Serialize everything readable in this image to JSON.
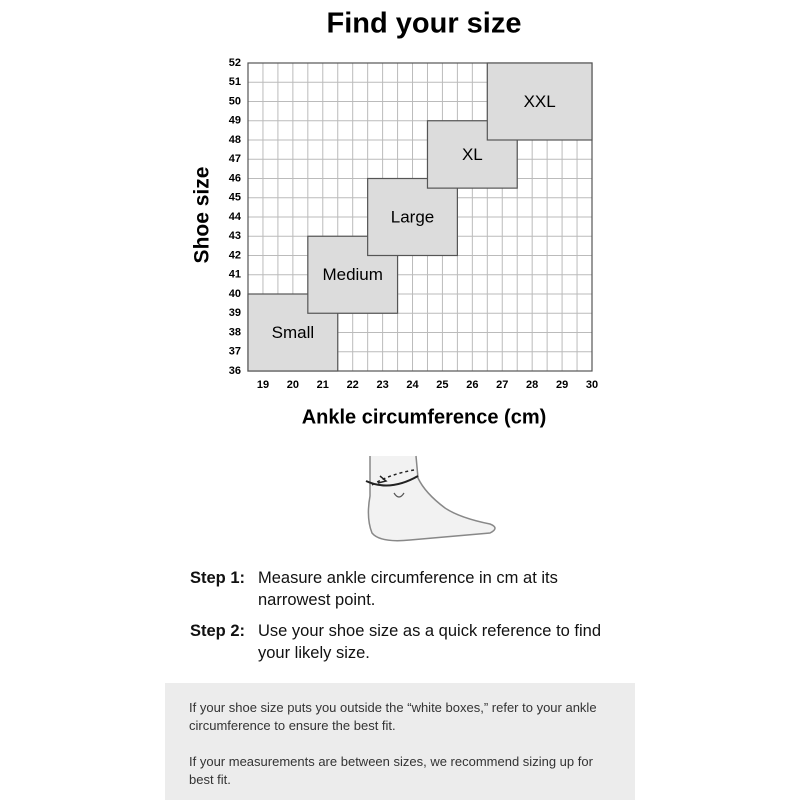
{
  "chart_data": {
    "type": "size-grid",
    "title": "Find your size",
    "x_label": "Ankle circumference (cm)",
    "y_label": "Shoe size",
    "xlim": [
      18.5,
      30
    ],
    "xticks": [
      19,
      20,
      21,
      22,
      23,
      24,
      25,
      26,
      27,
      28,
      29,
      30
    ],
    "ylim": [
      36,
      52
    ],
    "yticks": [
      36,
      37,
      38,
      39,
      40,
      41,
      42,
      43,
      44,
      45,
      46,
      47,
      48,
      49,
      50,
      51,
      52
    ],
    "grid": true,
    "color": "#dcdcdc",
    "regions": [
      {
        "name": "Small",
        "x": [
          18.5,
          21.5
        ],
        "y": [
          36,
          40
        ]
      },
      {
        "name": "Medium",
        "x": [
          20.5,
          23.5
        ],
        "y": [
          39,
          43
        ]
      },
      {
        "name": "Large",
        "x": [
          22.5,
          25.5
        ],
        "y": [
          42,
          46
        ]
      },
      {
        "name": "XL",
        "x": [
          24.5,
          27.5
        ],
        "y": [
          45.5,
          49
        ]
      },
      {
        "name": "XXL",
        "x": [
          26.5,
          30
        ],
        "y": [
          48,
          52
        ]
      }
    ]
  },
  "steps": [
    {
      "label": "Step 1:",
      "text": "Measure ankle circumference in cm at its narrowest point."
    },
    {
      "label": "Step 2:",
      "text": "Use your shoe size as a quick reference to find your likely size."
    }
  ],
  "notes": [
    "If your shoe size puts you outside the “white boxes,” refer to your ankle circumference to ensure the best fit.",
    "If your measurements are between sizes, we recommend sizing up for best fit."
  ]
}
